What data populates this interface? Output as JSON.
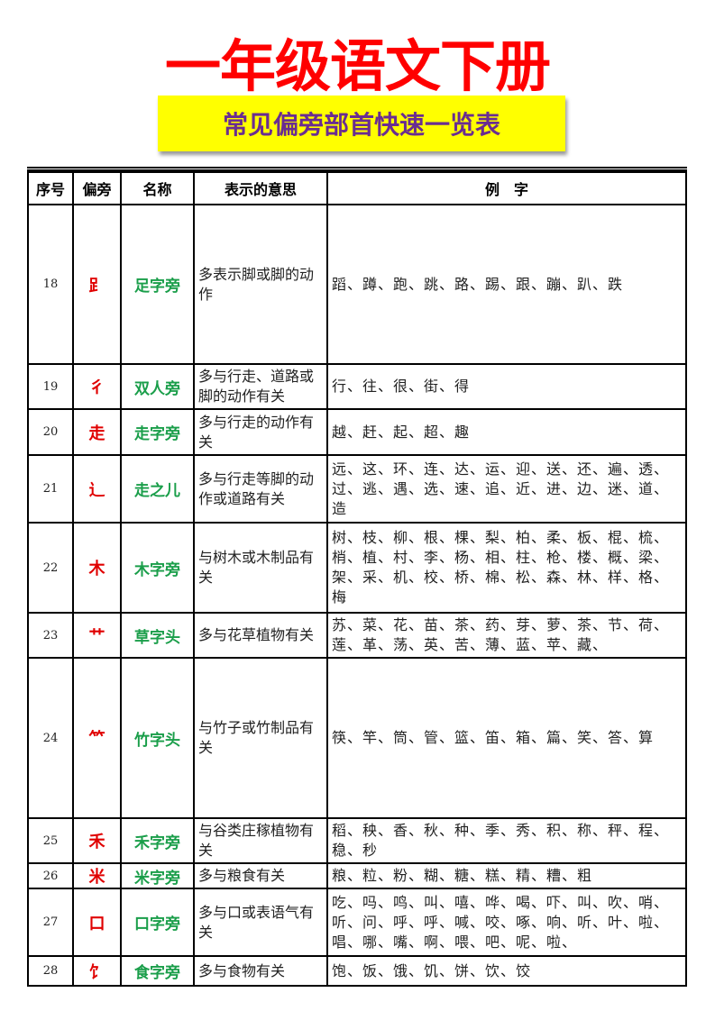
{
  "title": "一年级语文下册",
  "subtitle": "常见偏旁部首快速一览表",
  "colors": {
    "title": "#ff0000",
    "banner_bg": "#ffff00",
    "subtitle": "#6a2d91",
    "radical": "#e00000",
    "name": "#1a9e4a"
  },
  "table": {
    "headers": [
      "序号",
      "偏旁",
      "名称",
      "表示的意思",
      "例　字"
    ],
    "rows": [
      {
        "num": "18",
        "radical": "⻊",
        "name": "足字旁",
        "meaning": "多表示脚或脚的动作",
        "examples": "蹈、蹲、跑、跳、路、踢、跟、蹦、趴、跌"
      },
      {
        "num": "19",
        "radical": "彳",
        "name": "双人旁",
        "meaning": "多与行走、道路或脚的动作有关",
        "examples": "行、往、很、街、得"
      },
      {
        "num": "20",
        "radical": "走",
        "name": "走字旁",
        "meaning": "多与行走的动作有关",
        "examples": "越、赶、起、超、趣"
      },
      {
        "num": "21",
        "radical": "辶",
        "name": "走之儿",
        "meaning": "多与行走等脚的动作或道路有关",
        "examples": "远、这、环、连、达、运、迎、送、还、遍、透、过、逃、遇、选、速、追、近、进、边、迷、道、造"
      },
      {
        "num": "22",
        "radical": "木",
        "name": "木字旁",
        "meaning": "与树木或木制品有关",
        "examples": "树、枝、柳、根、棵、梨、柏、柔、板、棍、梳、梢、植、村、李、杨、相、柱、枪、楼、概、梁、架、采、机、校、桥、棉、松、森、林、样、格、梅"
      },
      {
        "num": "23",
        "radical": "艹",
        "name": "草字头",
        "meaning": "多与花草植物有关",
        "examples": "苏、菜、花、苗、茶、药、芽、萝、茶、节、荷、莲、革、荡、英、苦、薄、蓝、苹、藏、"
      },
      {
        "num": "24",
        "radical": "⺮",
        "name": "竹字头",
        "meaning": "与竹子或竹制品有关",
        "examples": "筷、竿、筒、管、篮、笛、箱、篇、笑、答、算"
      },
      {
        "num": "25",
        "radical": "禾",
        "name": "禾字旁",
        "meaning": "与谷类庄稼植物有关",
        "examples": "稻、秧、香、秋、种、季、秀、积、称、秤、程、稳、秒"
      },
      {
        "num": "26",
        "radical": "米",
        "name": "米字旁",
        "meaning": "多与粮食有关",
        "examples": "粮、粒、粉、糊、糖、糕、精、糟、粗"
      },
      {
        "num": "27",
        "radical": "口",
        "name": "口字旁",
        "meaning": "多与口或表语气有关",
        "examples": "吃、吗、鸣、叫、嘻、哗、喝、吓、叫、吹、哨、听、问、呼、呼、喊、咬、啄、响、听、叶、啦、唱、哪、嘴、啊、喂、吧、呢、啦、"
      },
      {
        "num": "28",
        "radical": "饣",
        "name": "食字旁",
        "meaning": "多与食物有关",
        "examples": "饱、饭、饿、饥、饼、饮、饺"
      }
    ]
  }
}
